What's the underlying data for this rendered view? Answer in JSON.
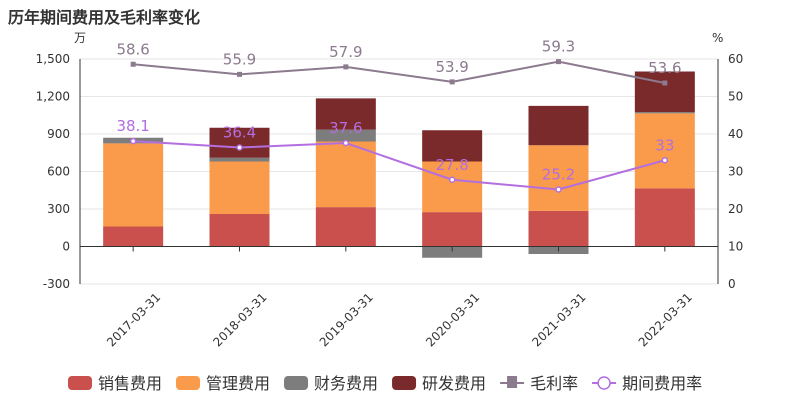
{
  "title": "历年期间费用及毛利率变化",
  "chart_data": {
    "type": "bar",
    "categories": [
      "2017-03-31",
      "2018-03-31",
      "2019-03-31",
      "2020-03-31",
      "2021-03-31",
      "2022-03-31"
    ],
    "y_left": {
      "unit": "万",
      "ticks": [
        "1,500",
        "1,200",
        "900",
        "600",
        "300",
        "0",
        "-300"
      ],
      "range": [
        -300,
        1500
      ]
    },
    "y_right": {
      "unit": "%",
      "ticks": [
        "60",
        "50",
        "40",
        "30",
        "20",
        "10",
        "0"
      ],
      "range": [
        0,
        60
      ]
    },
    "stacked_series": [
      {
        "name": "销售费用",
        "color": "#c9504d",
        "values": [
          160,
          260,
          315,
          275,
          285,
          465
        ]
      },
      {
        "name": "管理费用",
        "color": "#f99b4a",
        "values": [
          665,
          420,
          525,
          405,
          525,
          600
        ]
      },
      {
        "name": "财务费用",
        "color": "#7d7d7d",
        "values": [
          45,
          30,
          95,
          -90,
          -60,
          10
        ]
      },
      {
        "name": "研发费用",
        "color": "#7a2a2b",
        "values": [
          0,
          240,
          250,
          250,
          315,
          325
        ]
      }
    ],
    "line_series": [
      {
        "name": "毛利率",
        "color": "#8c7a8e",
        "marker": "square",
        "values": [
          58.6,
          55.9,
          57.9,
          53.9,
          59.3,
          53.6
        ],
        "labels": [
          "58.6",
          "55.9",
          "57.9",
          "53.9",
          "59.3",
          "53.6"
        ]
      },
      {
        "name": "期间费用率",
        "color": "#b36ee0",
        "marker": "circle",
        "values": [
          38.1,
          36.4,
          37.6,
          27.8,
          25.2,
          33
        ],
        "labels": [
          "38.1",
          "36.4",
          "37.6",
          "27.8",
          "25.2",
          "33"
        ]
      }
    ],
    "legend": [
      {
        "name": "销售费用",
        "type": "rect",
        "color": "#c9504d"
      },
      {
        "name": "管理费用",
        "type": "rect",
        "color": "#f99b4a"
      },
      {
        "name": "财务费用",
        "type": "rect",
        "color": "#7d7d7d"
      },
      {
        "name": "研发费用",
        "type": "rect",
        "color": "#7a2a2b"
      },
      {
        "name": "毛利率",
        "type": "line-square",
        "color": "#8c7a8e"
      },
      {
        "name": "期间费用率",
        "type": "line-circle",
        "color": "#b36ee0"
      }
    ],
    "legend_position": "bottom"
  }
}
